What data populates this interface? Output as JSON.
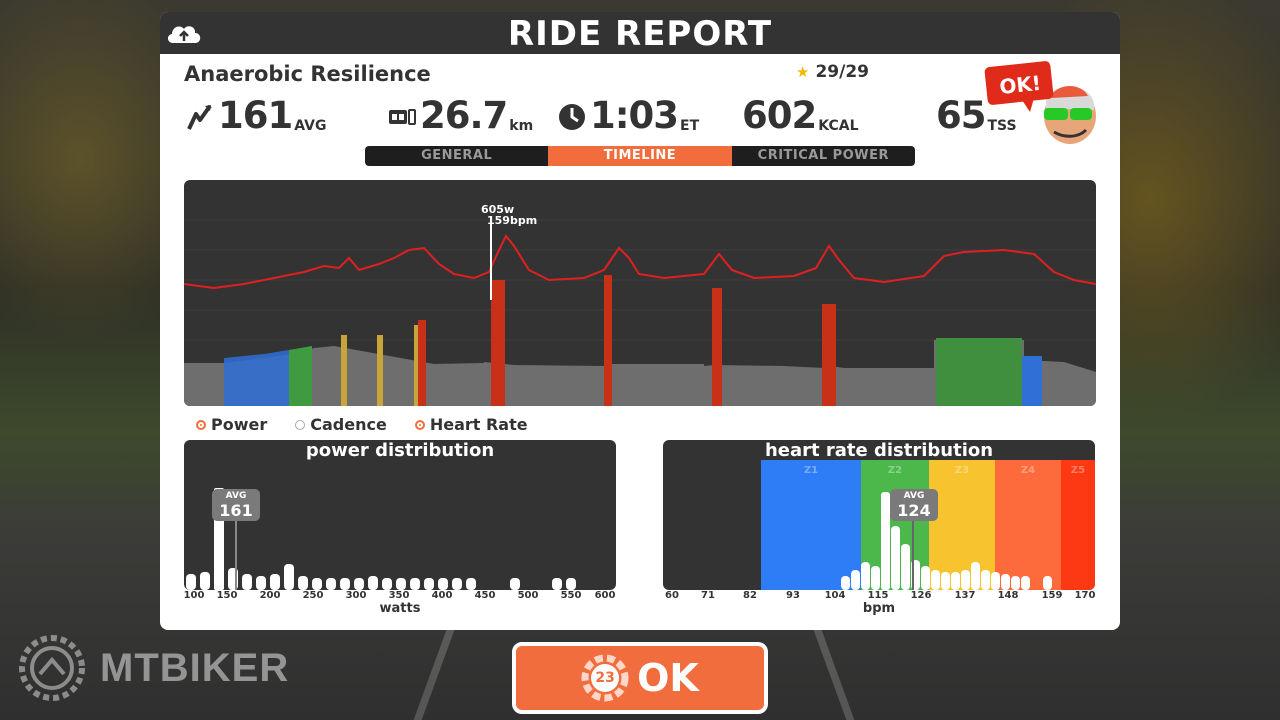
{
  "header": {
    "title": "RIDE REPORT",
    "cloud_icon": "cloud-upload-icon"
  },
  "workout": {
    "name": "Anaerobic Resilience",
    "progress": "29/29",
    "star_icon": "star-icon"
  },
  "stats": {
    "power": {
      "icon": "power-bolt-icon",
      "value": "161",
      "unit": "AVG"
    },
    "distance": {
      "icon": "odometer-icon",
      "value": "26.7",
      "unit": "km"
    },
    "time": {
      "icon": "clock-icon",
      "value": "1:03",
      "unit": "ET"
    },
    "calories": {
      "value": "602",
      "unit": "KCAL"
    },
    "tss": {
      "value": "65",
      "unit": "TSS"
    }
  },
  "avatar": {
    "bubble_text": "OK!"
  },
  "tabs": [
    {
      "label": "GENERAL",
      "active": false
    },
    {
      "label": "TIMELINE",
      "active": true
    },
    {
      "label": "CRITICAL POWER",
      "active": false
    }
  ],
  "timeline": {
    "peak_power_label": "605w",
    "peak_hr_label": "159bpm"
  },
  "legend": [
    {
      "label": "Power",
      "selected": true
    },
    {
      "label": "Cadence",
      "selected": false
    },
    {
      "label": "Heart Rate",
      "selected": true
    }
  ],
  "power_distribution": {
    "title": "power distribution",
    "avg_label": "AVG",
    "avg_value": "161",
    "axis_label": "watts",
    "ticks": [
      "100",
      "150",
      "200",
      "250",
      "300",
      "350",
      "400",
      "450",
      "500",
      "550",
      "600"
    ]
  },
  "hr_distribution": {
    "title": "heart rate distribution",
    "avg_label": "AVG",
    "avg_value": "124",
    "axis_label": "bpm",
    "ticks": [
      "60",
      "71",
      "82",
      "93",
      "104",
      "115",
      "126",
      "137",
      "148",
      "159",
      "170"
    ],
    "zones": [
      {
        "label": "Z1",
        "color": "#2f7df6"
      },
      {
        "label": "Z2",
        "color": "#4cb84c"
      },
      {
        "label": "Z3",
        "color": "#f7c430"
      },
      {
        "label": "Z4",
        "color": "#fd6a3b"
      },
      {
        "label": "Z5",
        "color": "#fc3912"
      }
    ]
  },
  "ok_button": {
    "label": "OK",
    "countdown": "23"
  },
  "watermark": {
    "text": "MTBIKER"
  },
  "colors": {
    "accent": "#f26d3d",
    "panel_dark": "#333333",
    "hr_line": "#e02020"
  }
}
